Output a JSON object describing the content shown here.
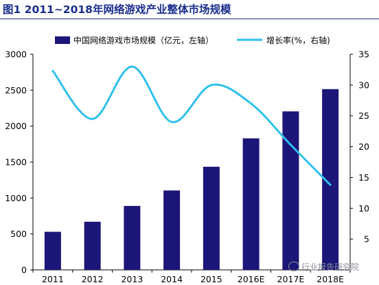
{
  "title": "图1 2011~2018年网络游戏产业整体市场规模",
  "colors": {
    "bar": "#1b1678",
    "line": "#2fc0ec",
    "title": "#1a2d8c",
    "axis": "#000000"
  },
  "chart_data": {
    "type": "bar",
    "categories": [
      "2011",
      "2012",
      "2013",
      "2014",
      "2015",
      "2016E",
      "2017E",
      "2018E"
    ],
    "series": [
      {
        "name": "中国网络游戏市场规模（亿元，左轴）",
        "type": "bar",
        "axis": "left",
        "values": [
          530,
          670,
          890,
          1105,
          1435,
          1830,
          2205,
          2515
        ]
      },
      {
        "name": "增长率(%，右轴)",
        "type": "line",
        "axis": "right",
        "values": [
          32.3,
          24.5,
          33.0,
          24.0,
          30.0,
          27.0,
          20.3,
          13.8
        ]
      }
    ],
    "yleft": {
      "lim": [
        0,
        3000
      ],
      "ticks": [
        "0",
        "500",
        "1000",
        "1500",
        "2000",
        "2500",
        "3000"
      ]
    },
    "yright": {
      "lim": [
        0,
        35
      ],
      "ticks": [
        "5",
        "10",
        "15",
        "20",
        "25",
        "30",
        "35"
      ]
    },
    "legend": "top",
    "grid": false
  },
  "watermark": "行业报告研究院"
}
